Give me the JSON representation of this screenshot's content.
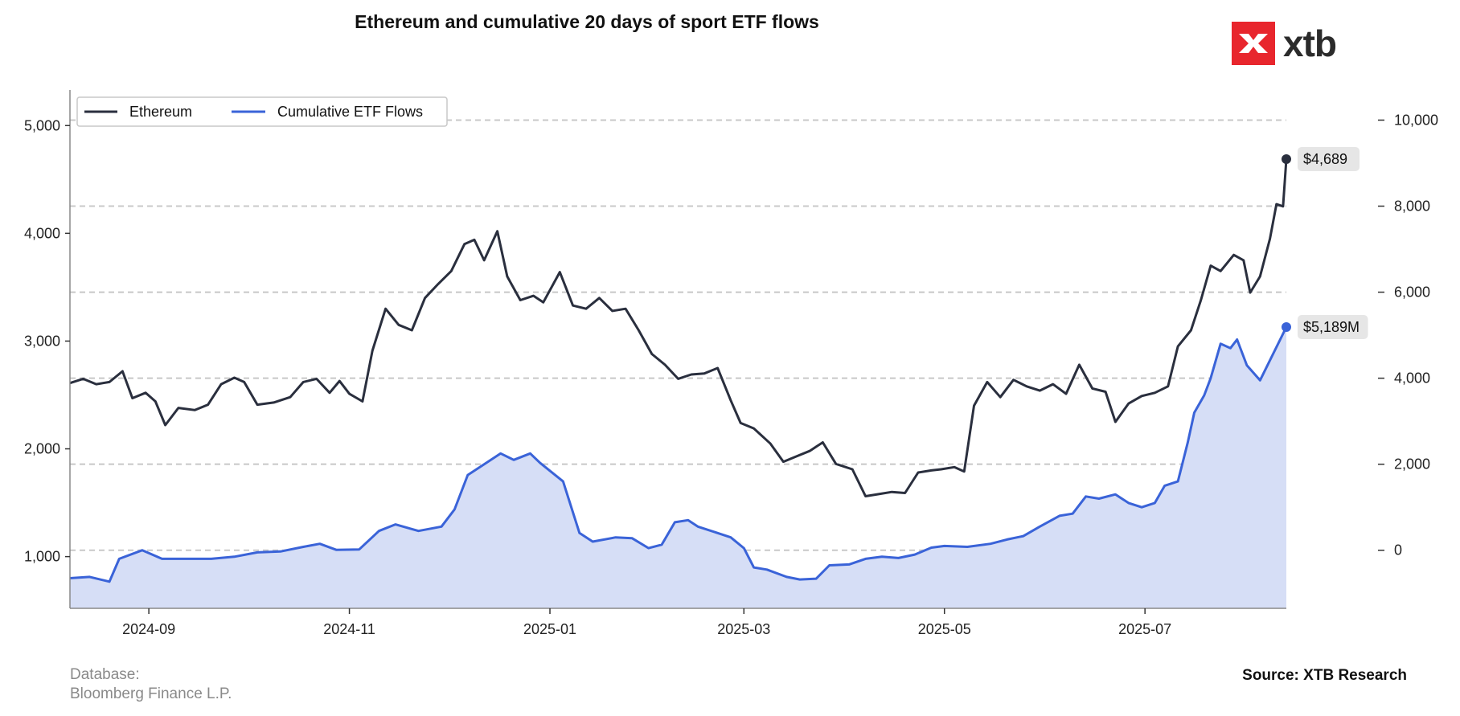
{
  "header": {
    "title": "Ethereum and cumulative 20 days of sport ETF flows",
    "brand": "xtb"
  },
  "footer": {
    "database_label": "Database:",
    "database_value": "Bloomberg Finance L.P.",
    "source": "Source: XTB Research"
  },
  "colors": {
    "ethereum": "#2a2f3e",
    "etf": "#3a63d8",
    "etf_fill": "#d6def6",
    "grid": "#c8c8c8",
    "brand_red": "#e8262d"
  },
  "chart_data": {
    "type": "line",
    "title": "Ethereum and cumulative 20 days of sport ETF flows",
    "x_range": [
      "2024-08-08",
      "2025-08-13"
    ],
    "x_ticks": [
      {
        "date": "2024-09-01",
        "label": "2024-09"
      },
      {
        "date": "2024-11-01",
        "label": "2024-11"
      },
      {
        "date": "2025-01-01",
        "label": "2025-01"
      },
      {
        "date": "2025-03-01",
        "label": "2025-03"
      },
      {
        "date": "2025-05-01",
        "label": "2025-05"
      },
      {
        "date": "2025-07-01",
        "label": "2025-07"
      }
    ],
    "y_left": {
      "range": [
        520,
        5330
      ],
      "ticks": [
        1000,
        2000,
        3000,
        4000,
        5000
      ],
      "labels": [
        "1,000",
        "2,000",
        "3,000",
        "4,000",
        "5,000"
      ]
    },
    "y_right": {
      "range": [
        -1350,
        10700
      ],
      "ticks": [
        0,
        2000,
        4000,
        6000,
        8000,
        10000
      ],
      "labels": [
        "0",
        "2,000",
        "4,000",
        "6,000",
        "8,000",
        "10,000"
      ]
    },
    "grid": "horizontal dashed at right-axis ticks",
    "legend": {
      "position": "top-left",
      "entries": [
        "Ethereum",
        "Cumulative ETF Flows"
      ]
    },
    "series": [
      {
        "name": "Ethereum",
        "axis": "left",
        "last_label": "$4,689",
        "points": [
          [
            "2024-08-08",
            2610
          ],
          [
            "2024-08-12",
            2650
          ],
          [
            "2024-08-16",
            2600
          ],
          [
            "2024-08-20",
            2620
          ],
          [
            "2024-08-24",
            2720
          ],
          [
            "2024-08-27",
            2470
          ],
          [
            "2024-08-31",
            2520
          ],
          [
            "2024-09-03",
            2440
          ],
          [
            "2024-09-06",
            2220
          ],
          [
            "2024-09-10",
            2380
          ],
          [
            "2024-09-15",
            2360
          ],
          [
            "2024-09-19",
            2410
          ],
          [
            "2024-09-23",
            2600
          ],
          [
            "2024-09-27",
            2660
          ],
          [
            "2024-09-30",
            2620
          ],
          [
            "2024-10-04",
            2410
          ],
          [
            "2024-10-09",
            2430
          ],
          [
            "2024-10-14",
            2480
          ],
          [
            "2024-10-18",
            2620
          ],
          [
            "2024-10-22",
            2650
          ],
          [
            "2024-10-26",
            2520
          ],
          [
            "2024-10-29",
            2630
          ],
          [
            "2024-11-01",
            2510
          ],
          [
            "2024-11-05",
            2440
          ],
          [
            "2024-11-08",
            2910
          ],
          [
            "2024-11-12",
            3300
          ],
          [
            "2024-11-16",
            3150
          ],
          [
            "2024-11-20",
            3100
          ],
          [
            "2024-11-24",
            3400
          ],
          [
            "2024-11-28",
            3530
          ],
          [
            "2024-12-02",
            3650
          ],
          [
            "2024-12-06",
            3900
          ],
          [
            "2024-12-09",
            3940
          ],
          [
            "2024-12-12",
            3750
          ],
          [
            "2024-12-16",
            4020
          ],
          [
            "2024-12-19",
            3600
          ],
          [
            "2024-12-23",
            3380
          ],
          [
            "2024-12-27",
            3420
          ],
          [
            "2024-12-30",
            3360
          ],
          [
            "2025-01-04",
            3640
          ],
          [
            "2025-01-08",
            3330
          ],
          [
            "2025-01-12",
            3300
          ],
          [
            "2025-01-16",
            3400
          ],
          [
            "2025-01-20",
            3280
          ],
          [
            "2025-01-24",
            3300
          ],
          [
            "2025-01-28",
            3100
          ],
          [
            "2025-02-01",
            2880
          ],
          [
            "2025-02-05",
            2780
          ],
          [
            "2025-02-09",
            2650
          ],
          [
            "2025-02-13",
            2690
          ],
          [
            "2025-02-17",
            2700
          ],
          [
            "2025-02-21",
            2750
          ],
          [
            "2025-02-25",
            2450
          ],
          [
            "2025-02-28",
            2240
          ],
          [
            "2025-03-04",
            2190
          ],
          [
            "2025-03-09",
            2050
          ],
          [
            "2025-03-13",
            1880
          ],
          [
            "2025-03-17",
            1930
          ],
          [
            "2025-03-21",
            1980
          ],
          [
            "2025-03-25",
            2060
          ],
          [
            "2025-03-29",
            1860
          ],
          [
            "2025-04-03",
            1810
          ],
          [
            "2025-04-07",
            1560
          ],
          [
            "2025-04-11",
            1580
          ],
          [
            "2025-04-15",
            1600
          ],
          [
            "2025-04-19",
            1590
          ],
          [
            "2025-04-23",
            1780
          ],
          [
            "2025-04-27",
            1800
          ],
          [
            "2025-04-30",
            1810
          ],
          [
            "2025-05-04",
            1830
          ],
          [
            "2025-05-07",
            1790
          ],
          [
            "2025-05-10",
            2400
          ],
          [
            "2025-05-14",
            2620
          ],
          [
            "2025-05-18",
            2480
          ],
          [
            "2025-05-22",
            2640
          ],
          [
            "2025-05-26",
            2580
          ],
          [
            "2025-05-30",
            2540
          ],
          [
            "2025-06-03",
            2600
          ],
          [
            "2025-06-07",
            2510
          ],
          [
            "2025-06-11",
            2780
          ],
          [
            "2025-06-15",
            2560
          ],
          [
            "2025-06-19",
            2530
          ],
          [
            "2025-06-22",
            2250
          ],
          [
            "2025-06-26",
            2420
          ],
          [
            "2025-06-30",
            2490
          ],
          [
            "2025-07-04",
            2520
          ],
          [
            "2025-07-08",
            2580
          ],
          [
            "2025-07-11",
            2950
          ],
          [
            "2025-07-15",
            3100
          ],
          [
            "2025-07-18",
            3380
          ],
          [
            "2025-07-21",
            3700
          ],
          [
            "2025-07-24",
            3650
          ],
          [
            "2025-07-28",
            3800
          ],
          [
            "2025-07-31",
            3750
          ],
          [
            "2025-08-02",
            3450
          ],
          [
            "2025-08-05",
            3600
          ],
          [
            "2025-08-08",
            3950
          ],
          [
            "2025-08-10",
            4270
          ],
          [
            "2025-08-12",
            4250
          ],
          [
            "2025-08-13",
            4689
          ]
        ]
      },
      {
        "name": "Cumulative ETF Flows",
        "axis": "right",
        "last_label": "$5,189M",
        "points": [
          [
            "2024-08-08",
            -650
          ],
          [
            "2024-08-14",
            -620
          ],
          [
            "2024-08-20",
            -730
          ],
          [
            "2024-08-23",
            -200
          ],
          [
            "2024-08-30",
            0
          ],
          [
            "2024-09-05",
            -200
          ],
          [
            "2024-09-13",
            -200
          ],
          [
            "2024-09-20",
            -200
          ],
          [
            "2024-09-27",
            -150
          ],
          [
            "2024-10-04",
            -50
          ],
          [
            "2024-10-11",
            -30
          ],
          [
            "2024-10-18",
            80
          ],
          [
            "2024-10-23",
            150
          ],
          [
            "2024-10-28",
            10
          ],
          [
            "2024-11-04",
            20
          ],
          [
            "2024-11-10",
            450
          ],
          [
            "2024-11-15",
            600
          ],
          [
            "2024-11-22",
            450
          ],
          [
            "2024-11-29",
            550
          ],
          [
            "2024-12-03",
            950
          ],
          [
            "2024-12-07",
            1750
          ],
          [
            "2024-12-12",
            2000
          ],
          [
            "2024-12-17",
            2250
          ],
          [
            "2024-12-21",
            2100
          ],
          [
            "2024-12-26",
            2250
          ],
          [
            "2024-12-29",
            2030
          ],
          [
            "2025-01-05",
            1600
          ],
          [
            "2025-01-10",
            400
          ],
          [
            "2025-01-14",
            200
          ],
          [
            "2025-01-21",
            300
          ],
          [
            "2025-01-26",
            280
          ],
          [
            "2025-01-31",
            50
          ],
          [
            "2025-02-04",
            130
          ],
          [
            "2025-02-08",
            650
          ],
          [
            "2025-02-12",
            700
          ],
          [
            "2025-02-15",
            550
          ],
          [
            "2025-02-21",
            400
          ],
          [
            "2025-02-25",
            300
          ],
          [
            "2025-03-01",
            50
          ],
          [
            "2025-03-04",
            -400
          ],
          [
            "2025-03-08",
            -450
          ],
          [
            "2025-03-14",
            -620
          ],
          [
            "2025-03-18",
            -680
          ],
          [
            "2025-03-23",
            -660
          ],
          [
            "2025-03-27",
            -350
          ],
          [
            "2025-04-02",
            -330
          ],
          [
            "2025-04-07",
            -200
          ],
          [
            "2025-04-12",
            -150
          ],
          [
            "2025-04-17",
            -180
          ],
          [
            "2025-04-22",
            -100
          ],
          [
            "2025-04-27",
            60
          ],
          [
            "2025-05-01",
            100
          ],
          [
            "2025-05-08",
            80
          ],
          [
            "2025-05-15",
            150
          ],
          [
            "2025-05-20",
            250
          ],
          [
            "2025-05-25",
            330
          ],
          [
            "2025-05-30",
            550
          ],
          [
            "2025-06-05",
            800
          ],
          [
            "2025-06-09",
            850
          ],
          [
            "2025-06-13",
            1250
          ],
          [
            "2025-06-17",
            1200
          ],
          [
            "2025-06-22",
            1300
          ],
          [
            "2025-06-26",
            1100
          ],
          [
            "2025-06-30",
            1000
          ],
          [
            "2025-07-04",
            1100
          ],
          [
            "2025-07-07",
            1500
          ],
          [
            "2025-07-11",
            1600
          ],
          [
            "2025-07-14",
            2500
          ],
          [
            "2025-07-16",
            3200
          ],
          [
            "2025-07-19",
            3600
          ],
          [
            "2025-07-21",
            4000
          ],
          [
            "2025-07-24",
            4800
          ],
          [
            "2025-07-27",
            4700
          ],
          [
            "2025-07-29",
            4900
          ],
          [
            "2025-08-01",
            4300
          ],
          [
            "2025-08-05",
            3950
          ],
          [
            "2025-08-13",
            5189
          ]
        ]
      }
    ]
  }
}
